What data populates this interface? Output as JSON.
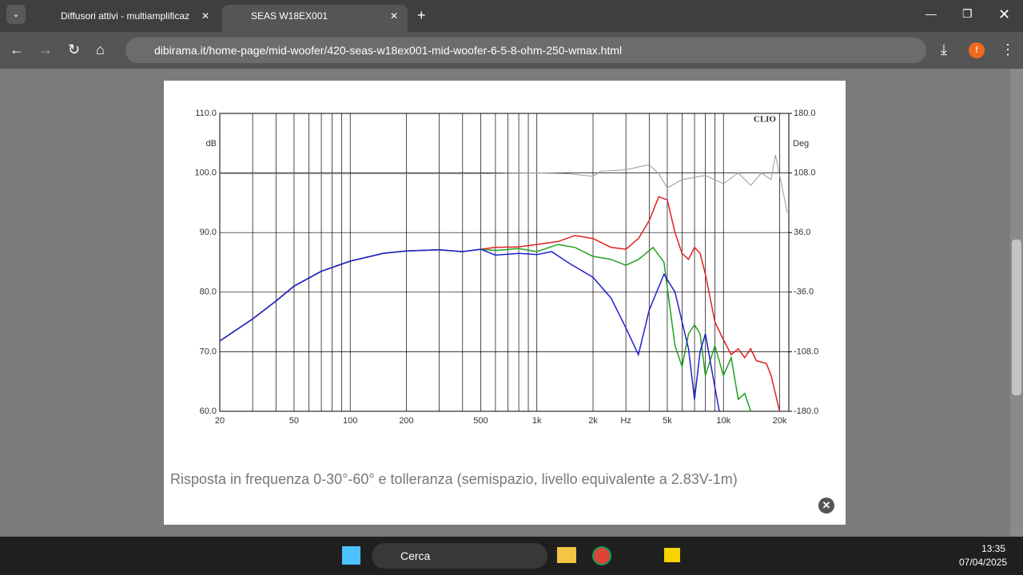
{
  "browser": {
    "tabs": [
      {
        "title": "Diffusori attivi - multiamplificaz"
      },
      {
        "title": "SEAS W18EX001"
      }
    ],
    "url": "dibirama.it/home-page/mid-woofer/420-seas-w18ex001-mid-woofer-6-5-8-ohm-250-wmax.html",
    "profile_initial": "f"
  },
  "lightbox": {
    "caption": "Risposta in frequenza 0-30°-60° e tolleranza (semispazio, livello equivalente a 2.83V-1m)"
  },
  "chart_data": {
    "type": "line",
    "brand": "CLIO",
    "ylabel": "dB",
    "y2label": "Deg",
    "xscale": "log",
    "grid": true,
    "xlim": [
      20,
      22400
    ],
    "ylim": [
      60,
      110
    ],
    "y2lim": [
      -180,
      180
    ],
    "xticks": [
      20,
      50,
      100,
      200,
      500,
      {
        "value": 1000,
        "label": "1k"
      },
      {
        "value": 2000,
        "label": "2k"
      },
      {
        "value": 3000,
        "label": "Hz"
      },
      {
        "value": 5000,
        "label": "5k"
      },
      {
        "value": 10000,
        "label": "10k"
      },
      {
        "value": 20000,
        "label": "20k"
      }
    ],
    "x_minor_grid": [
      30,
      40,
      60,
      70,
      80,
      90,
      300,
      400,
      600,
      700,
      800,
      900,
      4000,
      6000,
      7000,
      8000,
      9000
    ],
    "yticks": [
      {
        "value": 60,
        "label": "60.0"
      },
      {
        "value": 70,
        "label": "70.0"
      },
      {
        "value": 80,
        "label": "80.0"
      },
      {
        "value": 90,
        "label": "90.0"
      },
      {
        "value": 100,
        "label": "100.0"
      },
      {
        "value": 110,
        "label": "110.0"
      }
    ],
    "y2ticks": [
      {
        "value": -180,
        "label": "-180.0"
      },
      {
        "value": -108,
        "label": "-108.0"
      },
      {
        "value": -36,
        "label": "-36.0"
      },
      {
        "value": 36,
        "label": "36.0"
      },
      {
        "value": 108,
        "label": "108.0"
      },
      {
        "value": 180,
        "label": "180.0"
      }
    ],
    "series": [
      {
        "color": "#9a9a9a",
        "axis": "y2",
        "x": [
          20,
          500,
          1000,
          1500,
          2000,
          2200,
          3000,
          4000,
          4500,
          5000,
          6000,
          8000,
          10000,
          12000,
          14000,
          16000,
          18000,
          19000,
          20000,
          22000
        ],
        "values": [
          107,
          107,
          108,
          107,
          104,
          110,
          112,
          118,
          107,
          90,
          100,
          105,
          95,
          108,
          93,
          108,
          100,
          130,
          105,
          60
        ]
      },
      {
        "color": "#e02020",
        "x": [
          20,
          30,
          40,
          50,
          70,
          100,
          150,
          200,
          300,
          400,
          500,
          600,
          800,
          1000,
          1300,
          1600,
          2000,
          2500,
          3000,
          3500,
          4000,
          4500,
          5000,
          5500,
          6000,
          6500,
          7000,
          7500,
          8000,
          9000,
          10000,
          11000,
          12000,
          13000,
          14000,
          15000,
          17000,
          18000,
          20000
        ],
        "values": [
          71.8,
          75.5,
          78.5,
          81,
          83.5,
          85.2,
          86.5,
          86.9,
          87.1,
          86.8,
          87.2,
          87.5,
          87.6,
          88,
          88.5,
          89.5,
          89,
          87.5,
          87.2,
          89,
          92,
          96,
          95.5,
          90,
          86.5,
          85.5,
          87.5,
          86.5,
          83,
          75,
          72,
          69.5,
          70.5,
          69,
          70.5,
          68.5,
          68,
          66,
          60
        ]
      },
      {
        "color": "#20a020",
        "x": [
          20,
          30,
          40,
          50,
          70,
          100,
          150,
          200,
          300,
          400,
          500,
          600,
          800,
          1000,
          1300,
          1600,
          2000,
          2500,
          3000,
          3500,
          4200,
          4800,
          5500,
          6000,
          6500,
          7000,
          7500,
          8000,
          9000,
          10000,
          11000,
          12000,
          13000,
          14000
        ],
        "values": [
          71.8,
          75.5,
          78.5,
          81,
          83.5,
          85.2,
          86.5,
          86.9,
          87.1,
          86.8,
          87.2,
          87,
          87.3,
          86.8,
          88,
          87.5,
          86,
          85.5,
          84.5,
          85.5,
          87.5,
          85,
          71,
          67.5,
          73,
          74.5,
          73,
          66,
          71,
          66,
          69,
          62,
          63,
          60
        ]
      },
      {
        "color": "#2020d0",
        "x": [
          20,
          30,
          40,
          50,
          70,
          100,
          150,
          200,
          300,
          400,
          500,
          600,
          800,
          1000,
          1200,
          1500,
          2000,
          2500,
          3000,
          3500,
          4000,
          4800,
          5500,
          6500,
          7000,
          7500,
          8000,
          9000,
          9500
        ],
        "values": [
          71.8,
          75.5,
          78.5,
          81,
          83.5,
          85.2,
          86.5,
          86.9,
          87.1,
          86.8,
          87.2,
          86.2,
          86.5,
          86.3,
          86.8,
          84.8,
          82.5,
          79,
          74,
          69.5,
          77,
          83,
          80,
          70.5,
          62,
          70,
          73,
          64,
          60
        ]
      }
    ]
  },
  "taskbar": {
    "search": "Cerca",
    "time": "13:35",
    "date": "07/04/2025"
  }
}
